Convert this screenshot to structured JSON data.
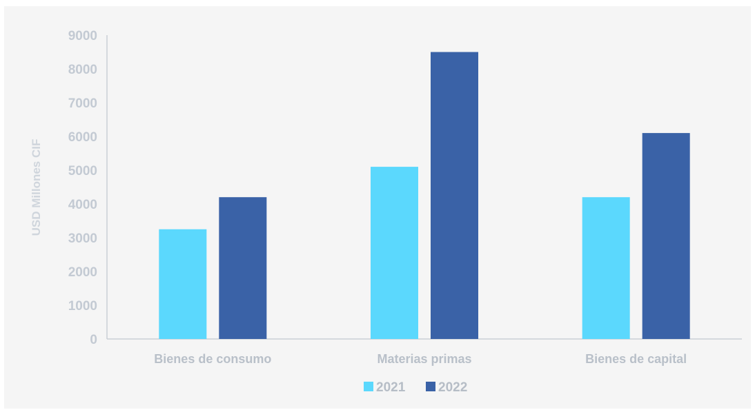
{
  "chart_data": {
    "type": "bar",
    "title": "",
    "xlabel": "",
    "ylabel": "USD Millones CIF",
    "categories": [
      "Bienes de consumo",
      "Materias primas",
      "Bienes de capital"
    ],
    "series": [
      {
        "name": "2021",
        "values": [
          3250,
          5100,
          4200
        ],
        "color": "#5bd8fd"
      },
      {
        "name": "2022",
        "values": [
          4200,
          8500,
          6100
        ],
        "color": "#3a62a7"
      }
    ],
    "ylim": [
      0,
      9000
    ],
    "yticks": [
      "0",
      "1000",
      "2000",
      "3000",
      "4000",
      "5000",
      "6000",
      "7000",
      "8000",
      "9000"
    ],
    "grid": false,
    "legend_position": "bottom"
  }
}
